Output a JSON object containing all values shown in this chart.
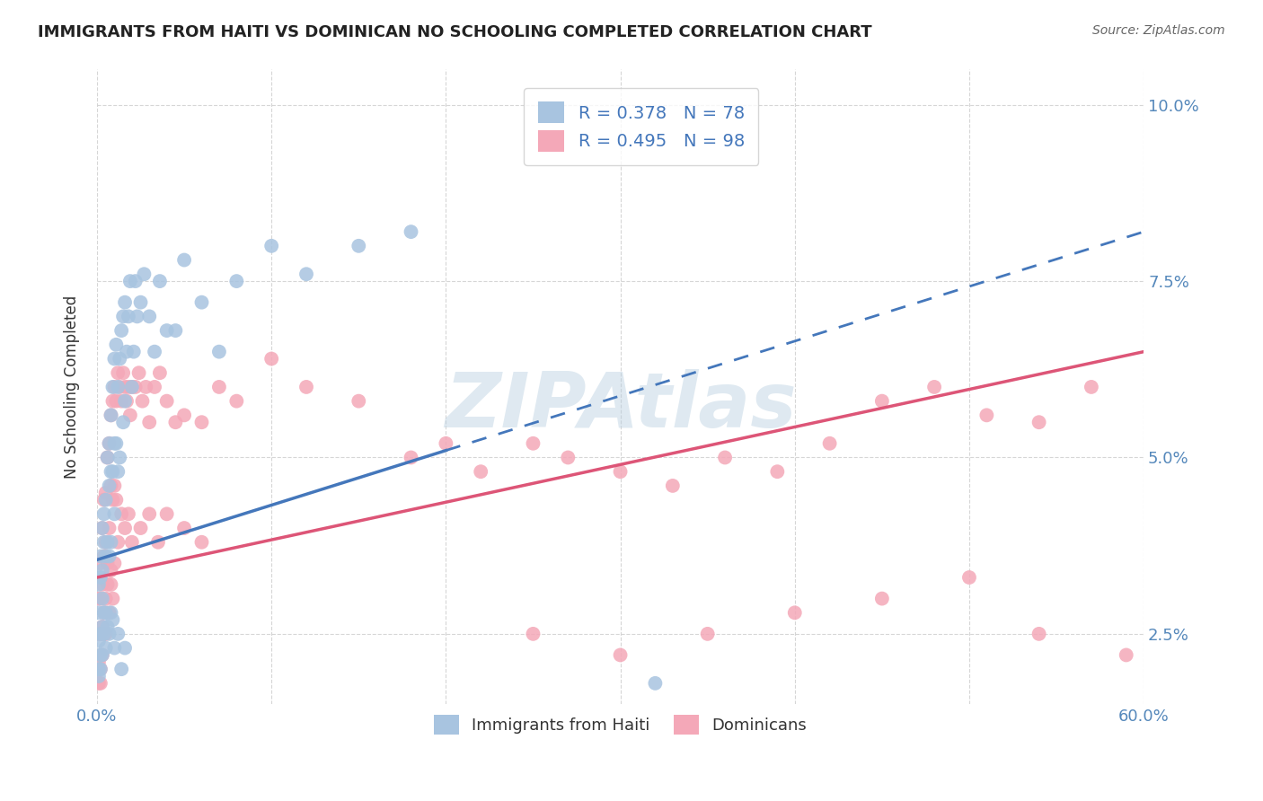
{
  "title": "IMMIGRANTS FROM HAITI VS DOMINICAN NO SCHOOLING COMPLETED CORRELATION CHART",
  "source": "Source: ZipAtlas.com",
  "ylabel": "No Schooling Completed",
  "xlim": [
    0.0,
    0.6
  ],
  "ylim": [
    0.015,
    0.105
  ],
  "xticks": [
    0.0,
    0.1,
    0.2,
    0.3,
    0.4,
    0.5,
    0.6
  ],
  "xticklabels": [
    "0.0%",
    "",
    "",
    "",
    "",
    "",
    "60.0%"
  ],
  "ytick_positions": [
    0.025,
    0.05,
    0.075,
    0.1
  ],
  "ytick_labels": [
    "2.5%",
    "5.0%",
    "7.5%",
    "10.0%"
  ],
  "legend1_label": "R = 0.378   N = 78",
  "legend2_label": "R = 0.495   N = 98",
  "legend_label1_bottom": "Immigrants from Haiti",
  "legend_label2_bottom": "Dominicans",
  "haiti_color": "#a8c4e0",
  "dominican_color": "#f4a8b8",
  "haiti_line_color": "#4477bb",
  "dominican_line_color": "#dd5577",
  "watermark": "ZIPAtlas",
  "haiti_line_x0": 0.0,
  "haiti_line_y0": 0.0355,
  "haiti_line_x1": 0.6,
  "haiti_line_y1": 0.082,
  "haiti_line_solid_end": 0.2,
  "dominican_line_x0": 0.0,
  "dominican_line_y0": 0.033,
  "dominican_line_x1": 0.6,
  "dominican_line_y1": 0.065,
  "haiti_scatter_x": [
    0.001,
    0.001,
    0.001,
    0.001,
    0.002,
    0.002,
    0.002,
    0.002,
    0.003,
    0.003,
    0.003,
    0.003,
    0.004,
    0.004,
    0.004,
    0.005,
    0.005,
    0.005,
    0.006,
    0.006,
    0.007,
    0.007,
    0.007,
    0.008,
    0.008,
    0.008,
    0.009,
    0.009,
    0.01,
    0.01,
    0.01,
    0.011,
    0.011,
    0.012,
    0.012,
    0.013,
    0.013,
    0.014,
    0.015,
    0.015,
    0.016,
    0.016,
    0.017,
    0.018,
    0.019,
    0.02,
    0.021,
    0.022,
    0.023,
    0.025,
    0.027,
    0.03,
    0.033,
    0.036,
    0.04,
    0.045,
    0.05,
    0.06,
    0.07,
    0.08,
    0.1,
    0.12,
    0.15,
    0.18,
    0.001,
    0.002,
    0.003,
    0.004,
    0.005,
    0.006,
    0.007,
    0.008,
    0.009,
    0.01,
    0.012,
    0.014,
    0.016,
    0.32
  ],
  "haiti_scatter_y": [
    0.032,
    0.028,
    0.024,
    0.02,
    0.036,
    0.033,
    0.025,
    0.022,
    0.04,
    0.034,
    0.03,
    0.026,
    0.042,
    0.038,
    0.028,
    0.044,
    0.036,
    0.028,
    0.05,
    0.038,
    0.052,
    0.046,
    0.036,
    0.056,
    0.048,
    0.038,
    0.06,
    0.048,
    0.064,
    0.052,
    0.042,
    0.066,
    0.052,
    0.06,
    0.048,
    0.064,
    0.05,
    0.068,
    0.07,
    0.055,
    0.072,
    0.058,
    0.065,
    0.07,
    0.075,
    0.06,
    0.065,
    0.075,
    0.07,
    0.072,
    0.076,
    0.07,
    0.065,
    0.075,
    0.068,
    0.068,
    0.078,
    0.072,
    0.065,
    0.075,
    0.08,
    0.076,
    0.08,
    0.082,
    0.019,
    0.02,
    0.022,
    0.025,
    0.023,
    0.026,
    0.025,
    0.028,
    0.027,
    0.023,
    0.025,
    0.02,
    0.023,
    0.018
  ],
  "dominican_scatter_x": [
    0.001,
    0.001,
    0.001,
    0.001,
    0.002,
    0.002,
    0.002,
    0.002,
    0.003,
    0.003,
    0.003,
    0.004,
    0.004,
    0.004,
    0.005,
    0.005,
    0.005,
    0.006,
    0.006,
    0.007,
    0.007,
    0.008,
    0.008,
    0.008,
    0.009,
    0.009,
    0.01,
    0.01,
    0.011,
    0.011,
    0.012,
    0.013,
    0.014,
    0.015,
    0.016,
    0.017,
    0.018,
    0.019,
    0.02,
    0.022,
    0.024,
    0.026,
    0.028,
    0.03,
    0.033,
    0.036,
    0.04,
    0.045,
    0.05,
    0.06,
    0.07,
    0.08,
    0.1,
    0.12,
    0.15,
    0.18,
    0.2,
    0.22,
    0.25,
    0.27,
    0.3,
    0.33,
    0.36,
    0.39,
    0.42,
    0.45,
    0.48,
    0.51,
    0.54,
    0.57,
    0.002,
    0.003,
    0.004,
    0.005,
    0.006,
    0.007,
    0.008,
    0.009,
    0.01,
    0.012,
    0.014,
    0.016,
    0.018,
    0.02,
    0.025,
    0.03,
    0.035,
    0.04,
    0.05,
    0.06,
    0.25,
    0.3,
    0.35,
    0.4,
    0.45,
    0.5,
    0.54,
    0.59
  ],
  "dominican_scatter_y": [
    0.03,
    0.025,
    0.021,
    0.018,
    0.035,
    0.03,
    0.025,
    0.018,
    0.04,
    0.032,
    0.026,
    0.044,
    0.036,
    0.025,
    0.045,
    0.038,
    0.025,
    0.05,
    0.035,
    0.052,
    0.04,
    0.056,
    0.046,
    0.034,
    0.058,
    0.044,
    0.06,
    0.046,
    0.058,
    0.044,
    0.062,
    0.06,
    0.058,
    0.062,
    0.06,
    0.058,
    0.06,
    0.056,
    0.06,
    0.06,
    0.062,
    0.058,
    0.06,
    0.055,
    0.06,
    0.062,
    0.058,
    0.055,
    0.056,
    0.055,
    0.06,
    0.058,
    0.064,
    0.06,
    0.058,
    0.05,
    0.052,
    0.048,
    0.052,
    0.05,
    0.048,
    0.046,
    0.05,
    0.048,
    0.052,
    0.058,
    0.06,
    0.056,
    0.055,
    0.06,
    0.02,
    0.022,
    0.028,
    0.03,
    0.032,
    0.028,
    0.032,
    0.03,
    0.035,
    0.038,
    0.042,
    0.04,
    0.042,
    0.038,
    0.04,
    0.042,
    0.038,
    0.042,
    0.04,
    0.038,
    0.025,
    0.022,
    0.025,
    0.028,
    0.03,
    0.033,
    0.025,
    0.022
  ]
}
